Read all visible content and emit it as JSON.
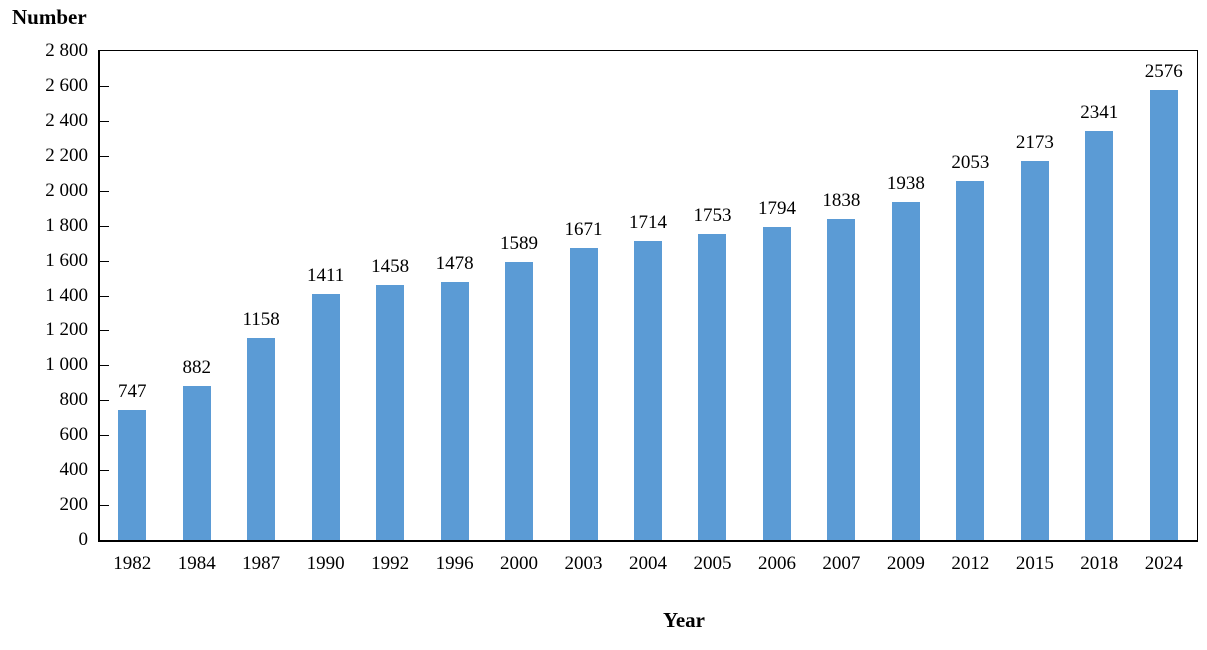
{
  "chart_data": {
    "type": "bar",
    "title": "",
    "ylabel": "Number",
    "xlabel": "Year",
    "categories": [
      "1982",
      "1984",
      "1987",
      "1990",
      "1992",
      "1996",
      "2000",
      "2003",
      "2004",
      "2005",
      "2006",
      "2007",
      "2009",
      "2012",
      "2015",
      "2018",
      "2024"
    ],
    "values": [
      747,
      882,
      1158,
      1411,
      1458,
      1478,
      1589,
      1671,
      1714,
      1753,
      1794,
      1838,
      1938,
      2053,
      2173,
      2341,
      2576
    ],
    "ylim": [
      0,
      2800
    ],
    "ytick_step": 200,
    "ytick_labels": [
      "0",
      "200",
      "400",
      "600",
      "800",
      "1 000",
      "1 200",
      "1 400",
      "1 600",
      "1 800",
      "2 000",
      "2 200",
      "2 400",
      "2 600",
      "2 800"
    ],
    "data_labels_shown": true,
    "grid": false,
    "legend": "none",
    "bar_color": "#5B9BD5",
    "axis_color": "#000000",
    "text_color": "#000000",
    "background_color": "#FFFFFF"
  }
}
